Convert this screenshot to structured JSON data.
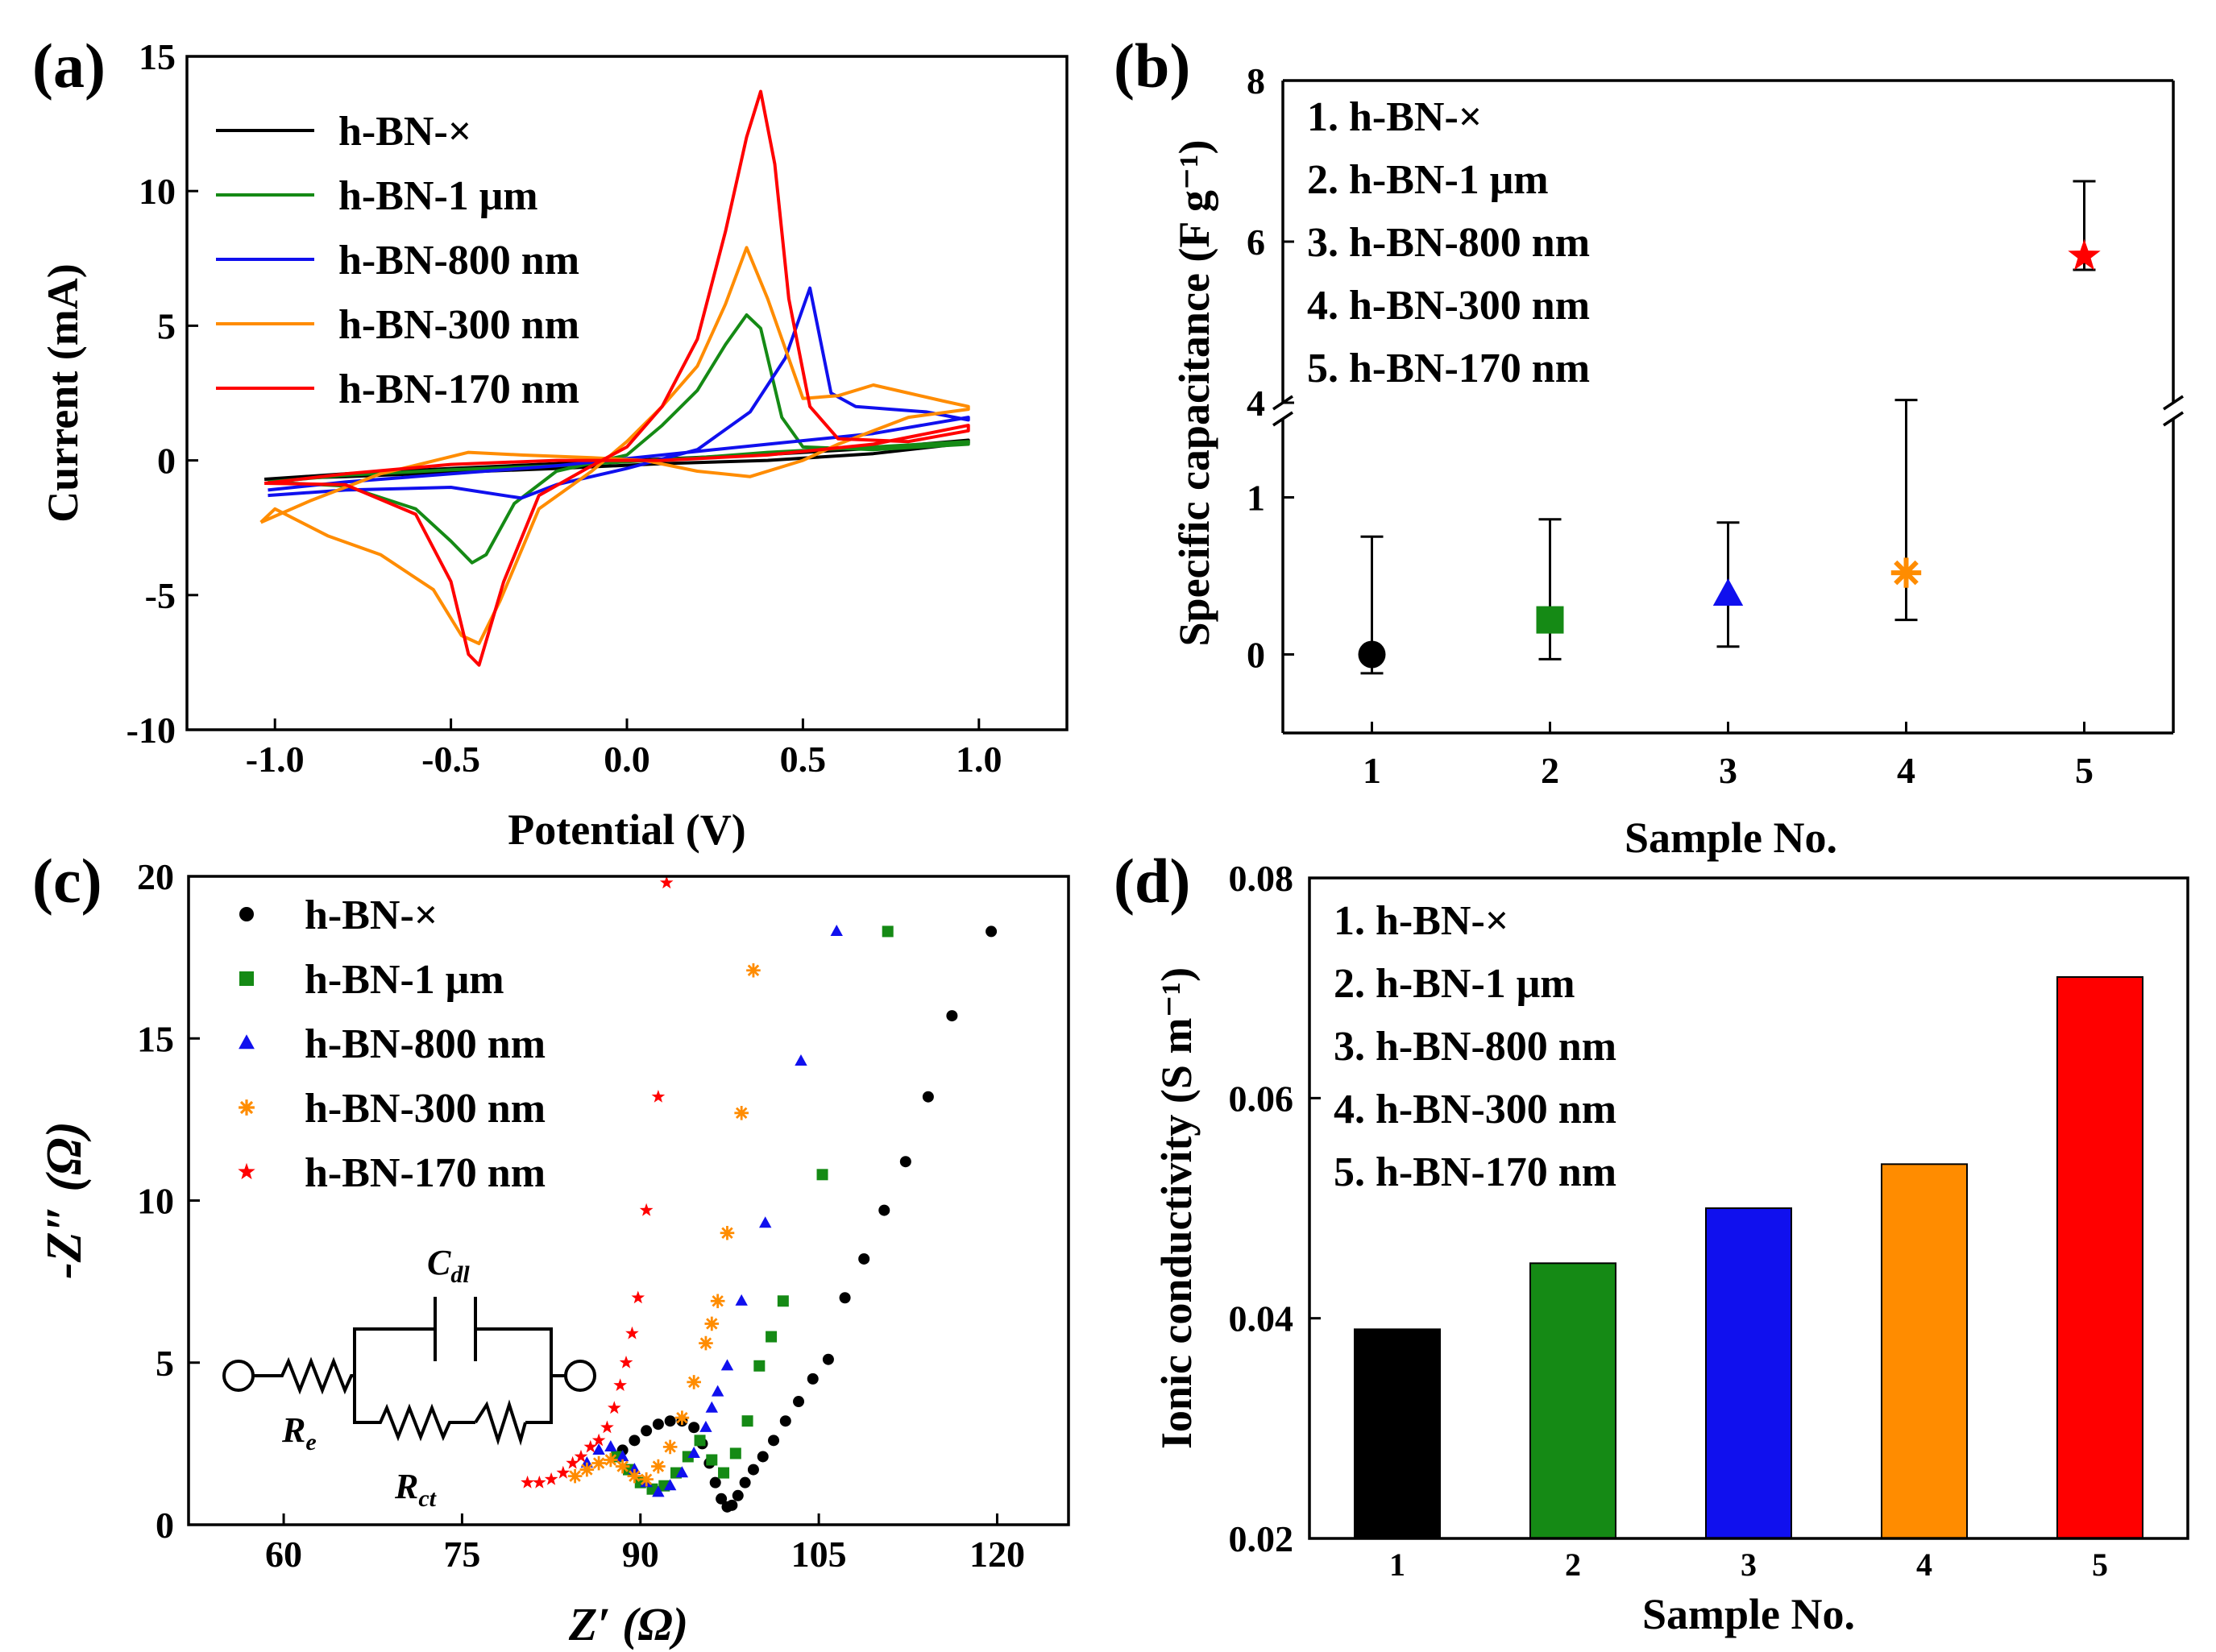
{
  "colors": {
    "s1": "#000000",
    "s2": "#158a15",
    "s3": "#1010ee",
    "s4": "#ff8c00",
    "s5": "#ff0000"
  },
  "chart_data": [
    {
      "panel": "a",
      "panel_label": "(a)",
      "type": "line",
      "title": "",
      "xlabel": "Potential (V)",
      "ylabel": "Current (mA)",
      "xlim": [
        -1.25,
        1.25
      ],
      "ylim": [
        -10,
        15
      ],
      "xticks": [
        -1.0,
        -0.5,
        0.0,
        0.5,
        1.0
      ],
      "xtick_labels": [
        "-1.0",
        "-0.5",
        "0.0",
        "0.5",
        "1.0"
      ],
      "yticks": [
        -10,
        -5,
        0,
        5,
        10,
        15
      ],
      "ytick_labels": [
        "-10",
        "-5",
        "0",
        "5",
        "10",
        "15"
      ],
      "legend": "top-left",
      "series": [
        {
          "name": "h-BN-×",
          "color_key": "s1",
          "x": [
            -1.03,
            -0.8,
            -0.5,
            -0.2,
            0.1,
            0.4,
            0.7,
            0.97,
            0.97,
            0.7,
            0.4,
            0.1,
            -0.2,
            -0.5,
            -0.8,
            -1.03
          ],
          "y": [
            -0.7,
            -0.6,
            -0.45,
            -0.3,
            -0.12,
            0.0,
            0.25,
            0.65,
            0.75,
            0.45,
            0.22,
            0.05,
            -0.12,
            -0.3,
            -0.5,
            -0.7
          ]
        },
        {
          "name": "h-BN-1 μm",
          "color_key": "s2",
          "x": [
            -1.02,
            -0.8,
            -0.6,
            -0.5,
            -0.44,
            -0.4,
            -0.32,
            -0.2,
            0.0,
            0.1,
            0.2,
            0.28,
            0.34,
            0.38,
            0.44,
            0.5,
            0.7,
            0.97,
            0.97,
            0.7,
            0.4,
            0.2,
            0.0,
            -0.2,
            -0.5,
            -0.8,
            -1.02
          ],
          "y": [
            -0.8,
            -0.95,
            -1.8,
            -3.0,
            -3.8,
            -3.5,
            -1.6,
            -0.4,
            0.2,
            1.3,
            2.6,
            4.3,
            5.4,
            4.9,
            1.6,
            0.5,
            0.4,
            0.6,
            0.7,
            0.5,
            0.3,
            0.1,
            -0.05,
            -0.2,
            -0.35,
            -0.55,
            -0.8
          ]
        },
        {
          "name": "h-BN-800 nm",
          "color_key": "s3",
          "x": [
            -1.02,
            -0.8,
            -0.5,
            -0.3,
            -0.2,
            0.0,
            0.2,
            0.35,
            0.45,
            0.52,
            0.58,
            0.65,
            0.75,
            0.85,
            0.97,
            0.97,
            0.7,
            0.4,
            0.1,
            -0.2,
            -0.5,
            -0.8,
            -1.02
          ],
          "y": [
            -1.3,
            -1.1,
            -1.0,
            -1.4,
            -0.9,
            -0.3,
            0.4,
            1.8,
            3.8,
            6.4,
            2.5,
            2.0,
            1.9,
            1.8,
            1.5,
            1.6,
            1.0,
            0.6,
            0.2,
            -0.2,
            -0.5,
            -0.8,
            -1.1
          ]
        },
        {
          "name": "h-BN-300 nm",
          "color_key": "s4",
          "x": [
            -1.04,
            -1.0,
            -0.85,
            -0.7,
            -0.55,
            -0.47,
            -0.42,
            -0.36,
            -0.25,
            -0.1,
            0.0,
            0.1,
            0.2,
            0.28,
            0.34,
            0.4,
            0.5,
            0.6,
            0.7,
            0.8,
            0.9,
            0.97,
            0.97,
            0.8,
            0.6,
            0.5,
            0.35,
            0.2,
            0.05,
            -0.1,
            -0.3,
            -0.45,
            -0.7,
            -0.9,
            -1.04
          ],
          "y": [
            -2.3,
            -1.8,
            -2.8,
            -3.5,
            -4.8,
            -6.5,
            -6.8,
            -5.2,
            -1.8,
            -0.4,
            0.7,
            2.0,
            3.5,
            5.8,
            7.9,
            6.0,
            2.3,
            2.4,
            2.8,
            2.5,
            2.2,
            2.0,
            1.9,
            1.6,
            0.6,
            0.0,
            -0.6,
            -0.4,
            0.0,
            0.1,
            0.2,
            0.3,
            -0.5,
            -1.5,
            -2.3
          ]
        },
        {
          "name": "h-BN-170 nm",
          "color_key": "s5",
          "x": [
            -1.03,
            -0.8,
            -0.6,
            -0.5,
            -0.45,
            -0.42,
            -0.35,
            -0.25,
            -0.1,
            0.0,
            0.1,
            0.2,
            0.28,
            0.34,
            0.38,
            0.42,
            0.46,
            0.52,
            0.6,
            0.8,
            0.97,
            0.97,
            0.7,
            0.4,
            0.1,
            -0.2,
            -0.5,
            -0.8,
            -1.03
          ],
          "y": [
            -0.85,
            -0.9,
            -2.0,
            -4.5,
            -7.2,
            -7.6,
            -4.5,
            -1.3,
            -0.2,
            0.5,
            2.0,
            4.5,
            8.5,
            12.0,
            13.7,
            11.0,
            6.0,
            2.0,
            0.8,
            0.7,
            1.1,
            1.3,
            0.6,
            0.2,
            0.0,
            0.0,
            -0.15,
            -0.5,
            -0.85
          ]
        }
      ]
    },
    {
      "panel": "b",
      "panel_label": "(b)",
      "type": "scatter",
      "title": "",
      "xlabel": "Sample No.",
      "ylabel": "Specific capacitance (F g⁻¹)",
      "xlim": [
        0.5,
        5.5
      ],
      "broken_axis": true,
      "ylim_lower": [
        -0.5,
        1.5
      ],
      "ylim_upper": [
        4,
        8
      ],
      "xticks": [
        1,
        2,
        3,
        4,
        5
      ],
      "xtick_labels": [
        "1",
        "2",
        "3",
        "4",
        "5"
      ],
      "yticks_lower": [
        0,
        1
      ],
      "ytick_labels_lower": [
        "0",
        "1"
      ],
      "yticks_upper": [
        4,
        6,
        8
      ],
      "ytick_labels_upper": [
        "4",
        "6",
        "8"
      ],
      "legend_items": [
        "1. h-BN-×",
        "2. h-BN-1 μm",
        "3. h-BN-800 nm",
        "4. h-BN-300 nm",
        "5. h-BN-170 nm"
      ],
      "points": [
        {
          "x": 1,
          "y": 0.0,
          "err_low": -0.12,
          "err_high": 0.75,
          "marker": "circle",
          "color_key": "s1"
        },
        {
          "x": 2,
          "y": 0.22,
          "err_low": -0.03,
          "err_high": 0.86,
          "marker": "square",
          "color_key": "s2"
        },
        {
          "x": 3,
          "y": 0.38,
          "err_low": 0.05,
          "err_high": 0.84,
          "marker": "triangle",
          "color_key": "s3"
        },
        {
          "x": 4,
          "y": 0.52,
          "err_low": 0.22,
          "err_high": 1.62,
          "marker": "asterisk",
          "color_key": "s4"
        },
        {
          "x": 5,
          "y": 5.82,
          "err_low": 5.65,
          "err_high": 6.75,
          "marker": "star",
          "color_key": "s5"
        }
      ]
    },
    {
      "panel": "c",
      "panel_label": "(c)",
      "type": "scatter",
      "title": "",
      "xlabel": "Z′ (Ω)",
      "ylabel": "-Z″ (Ω)",
      "xlim": [
        52,
        126
      ],
      "ylim": [
        0,
        20
      ],
      "xticks": [
        60,
        75,
        90,
        105,
        120
      ],
      "xtick_labels": [
        "60",
        "75",
        "90",
        "105",
        "120"
      ],
      "yticks": [
        0,
        5,
        10,
        15,
        20
      ],
      "ytick_labels": [
        "0",
        "5",
        "10",
        "15",
        "20"
      ],
      "legend": "top-left",
      "circuit_labels": {
        "re": "R",
        "re_sub": "e",
        "rct": "R",
        "rct_sub": "ct",
        "cdl": "C",
        "cdl_sub": "dl"
      },
      "series": [
        {
          "name": "h-BN-×",
          "marker": "circle",
          "color_key": "s1",
          "x": [
            88.5,
            89.5,
            90.5,
            91.5,
            92.5,
            93.5,
            94.5,
            95.2,
            95.8,
            96.3,
            96.8,
            97.3,
            97.7,
            98.2,
            98.8,
            99.5,
            100.3,
            101.2,
            102.2,
            103.3,
            104.5,
            105.8,
            107.2,
            108.8,
            110.5,
            112.3,
            114.2,
            116.2,
            119.5
          ],
          "y": [
            2.3,
            2.6,
            2.9,
            3.1,
            3.2,
            3.2,
            3.0,
            2.5,
            1.9,
            1.3,
            0.8,
            0.55,
            0.6,
            0.9,
            1.3,
            1.7,
            2.1,
            2.6,
            3.2,
            3.8,
            4.5,
            5.1,
            7.0,
            8.2,
            9.7,
            11.2,
            13.2,
            15.7,
            18.3
          ]
        },
        {
          "name": "h-BN-1 μm",
          "marker": "square",
          "color_key": "s2",
          "x": [
            88.0,
            89.0,
            90.0,
            91.0,
            92.0,
            93.0,
            94.0,
            95.0,
            96.0,
            97.0,
            98.0,
            99.0,
            100.0,
            101.0,
            102.0,
            105.3,
            110.8
          ],
          "y": [
            2.1,
            1.7,
            1.3,
            1.1,
            1.2,
            1.6,
            2.1,
            2.6,
            2.0,
            1.6,
            2.2,
            3.2,
            4.9,
            5.8,
            6.9,
            10.8,
            18.3
          ]
        },
        {
          "name": "h-BN-800 nm",
          "marker": "triangle",
          "color_key": "s3",
          "x": [
            85.5,
            86.5,
            87.5,
            88.5,
            89.5,
            90.5,
            91.5,
            92.5,
            93.5,
            94.5,
            95.5,
            96.0,
            96.5,
            97.3,
            98.5,
            100.5,
            103.5,
            106.5
          ],
          "y": [
            1.9,
            2.3,
            2.4,
            2.1,
            1.7,
            1.3,
            1.0,
            1.2,
            1.6,
            2.2,
            3.0,
            3.6,
            4.1,
            4.9,
            6.9,
            9.3,
            14.3,
            18.3
          ]
        },
        {
          "name": "h-BN-300 nm",
          "marker": "asterisk",
          "color_key": "s4",
          "x": [
            84.5,
            85.5,
            86.5,
            87.5,
            88.5,
            89.5,
            90.5,
            91.5,
            92.5,
            93.5,
            94.5,
            95.5,
            96.0,
            96.5,
            97.3,
            98.5,
            99.5
          ],
          "y": [
            1.5,
            1.7,
            1.9,
            2.0,
            1.8,
            1.5,
            1.4,
            1.8,
            2.4,
            3.3,
            4.4,
            5.6,
            6.2,
            6.9,
            9.0,
            12.7,
            17.1
          ]
        },
        {
          "name": "h-BN-170 nm",
          "marker": "star",
          "color_key": "s5",
          "x": [
            80.5,
            81.5,
            82.5,
            83.5,
            84.3,
            85.0,
            85.8,
            86.5,
            87.2,
            87.8,
            88.3,
            88.8,
            89.3,
            89.8,
            90.5,
            91.5,
            92.2
          ],
          "y": [
            1.3,
            1.3,
            1.4,
            1.6,
            1.9,
            2.1,
            2.4,
            2.6,
            3.0,
            3.6,
            4.3,
            5.0,
            5.9,
            7.0,
            9.7,
            13.2,
            19.8
          ]
        }
      ]
    },
    {
      "panel": "d",
      "panel_label": "(d)",
      "type": "bar",
      "title": "",
      "xlabel": "Sample No.",
      "ylabel": "Ionic conductivity (S m⁻¹)",
      "categories": [
        "1",
        "2",
        "3",
        "4",
        "5"
      ],
      "values": [
        0.039,
        0.045,
        0.05,
        0.054,
        0.071
      ],
      "bar_color_keys": [
        "s1",
        "s2",
        "s3",
        "s4",
        "s5"
      ],
      "ylim": [
        0.02,
        0.08
      ],
      "yticks": [
        0.02,
        0.04,
        0.06,
        0.08
      ],
      "ytick_labels": [
        "0.02",
        "0.04",
        "0.06",
        "0.08"
      ],
      "legend_items": [
        "1. h-BN-×",
        "2. h-BN-1 μm",
        "3. h-BN-800 nm",
        "4. h-BN-300 nm",
        "5. h-BN-170 nm"
      ]
    }
  ]
}
